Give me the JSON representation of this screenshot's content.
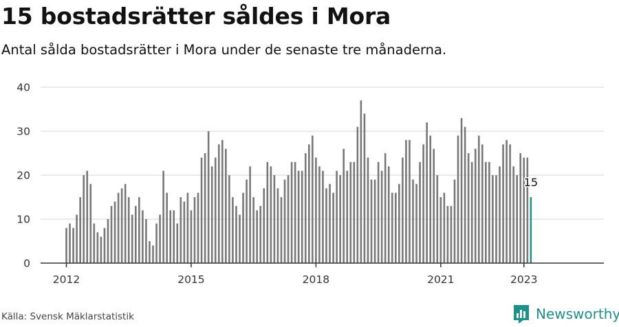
{
  "title": "15 bostadsrätter såldes i Mora",
  "subtitle": "Antal sålda bostadsrätter i Mora under de senaste tre månaderna.",
  "source": "Källa: Svensk Mäklarstatistik",
  "brand": {
    "name": "Newsworthy",
    "icon": "newsworthy-logo-icon",
    "color": "#1f8f89"
  },
  "colors": {
    "bar": "#777777",
    "highlight": "#1f8f89",
    "grid": "#dddddd",
    "axis": "#333333"
  },
  "chart_data": {
    "type": "bar",
    "title": "",
    "xlabel": "",
    "ylabel": "",
    "ylim": [
      0,
      40
    ],
    "yticks": [
      0,
      10,
      20,
      30,
      40
    ],
    "grid": true,
    "legend": "none",
    "x_start": "2012-01",
    "x_tick_labels": [
      "2012",
      "2015",
      "2018",
      "2021",
      "2023"
    ],
    "highlight_label": "15",
    "values": [
      8,
      9,
      8,
      11,
      15,
      20,
      21,
      18,
      9,
      7,
      6,
      8,
      10,
      13,
      14,
      16,
      17,
      18,
      15,
      11,
      13,
      15,
      12,
      10,
      5,
      4,
      9,
      11,
      21,
      16,
      12,
      12,
      9,
      15,
      14,
      16,
      12,
      15,
      16,
      24,
      25,
      30,
      22,
      24,
      27,
      28,
      26,
      20,
      15,
      13,
      11,
      16,
      19,
      22,
      15,
      12,
      13,
      17,
      23,
      22,
      20,
      17,
      15,
      19,
      20,
      23,
      23,
      21,
      21,
      25,
      27,
      29,
      24,
      22,
      21,
      17,
      18,
      16,
      21,
      20,
      26,
      21,
      23,
      23,
      31,
      37,
      34,
      24,
      19,
      19,
      23,
      21,
      25,
      22,
      16,
      16,
      18,
      24,
      28,
      28,
      19,
      18,
      23,
      27,
      32,
      29,
      26,
      20,
      15,
      16,
      13,
      13,
      19,
      29,
      33,
      31,
      25,
      23,
      26,
      29,
      27,
      23,
      23,
      20,
      20,
      22,
      27,
      28,
      27,
      22,
      20,
      25,
      24,
      24,
      15
    ]
  }
}
